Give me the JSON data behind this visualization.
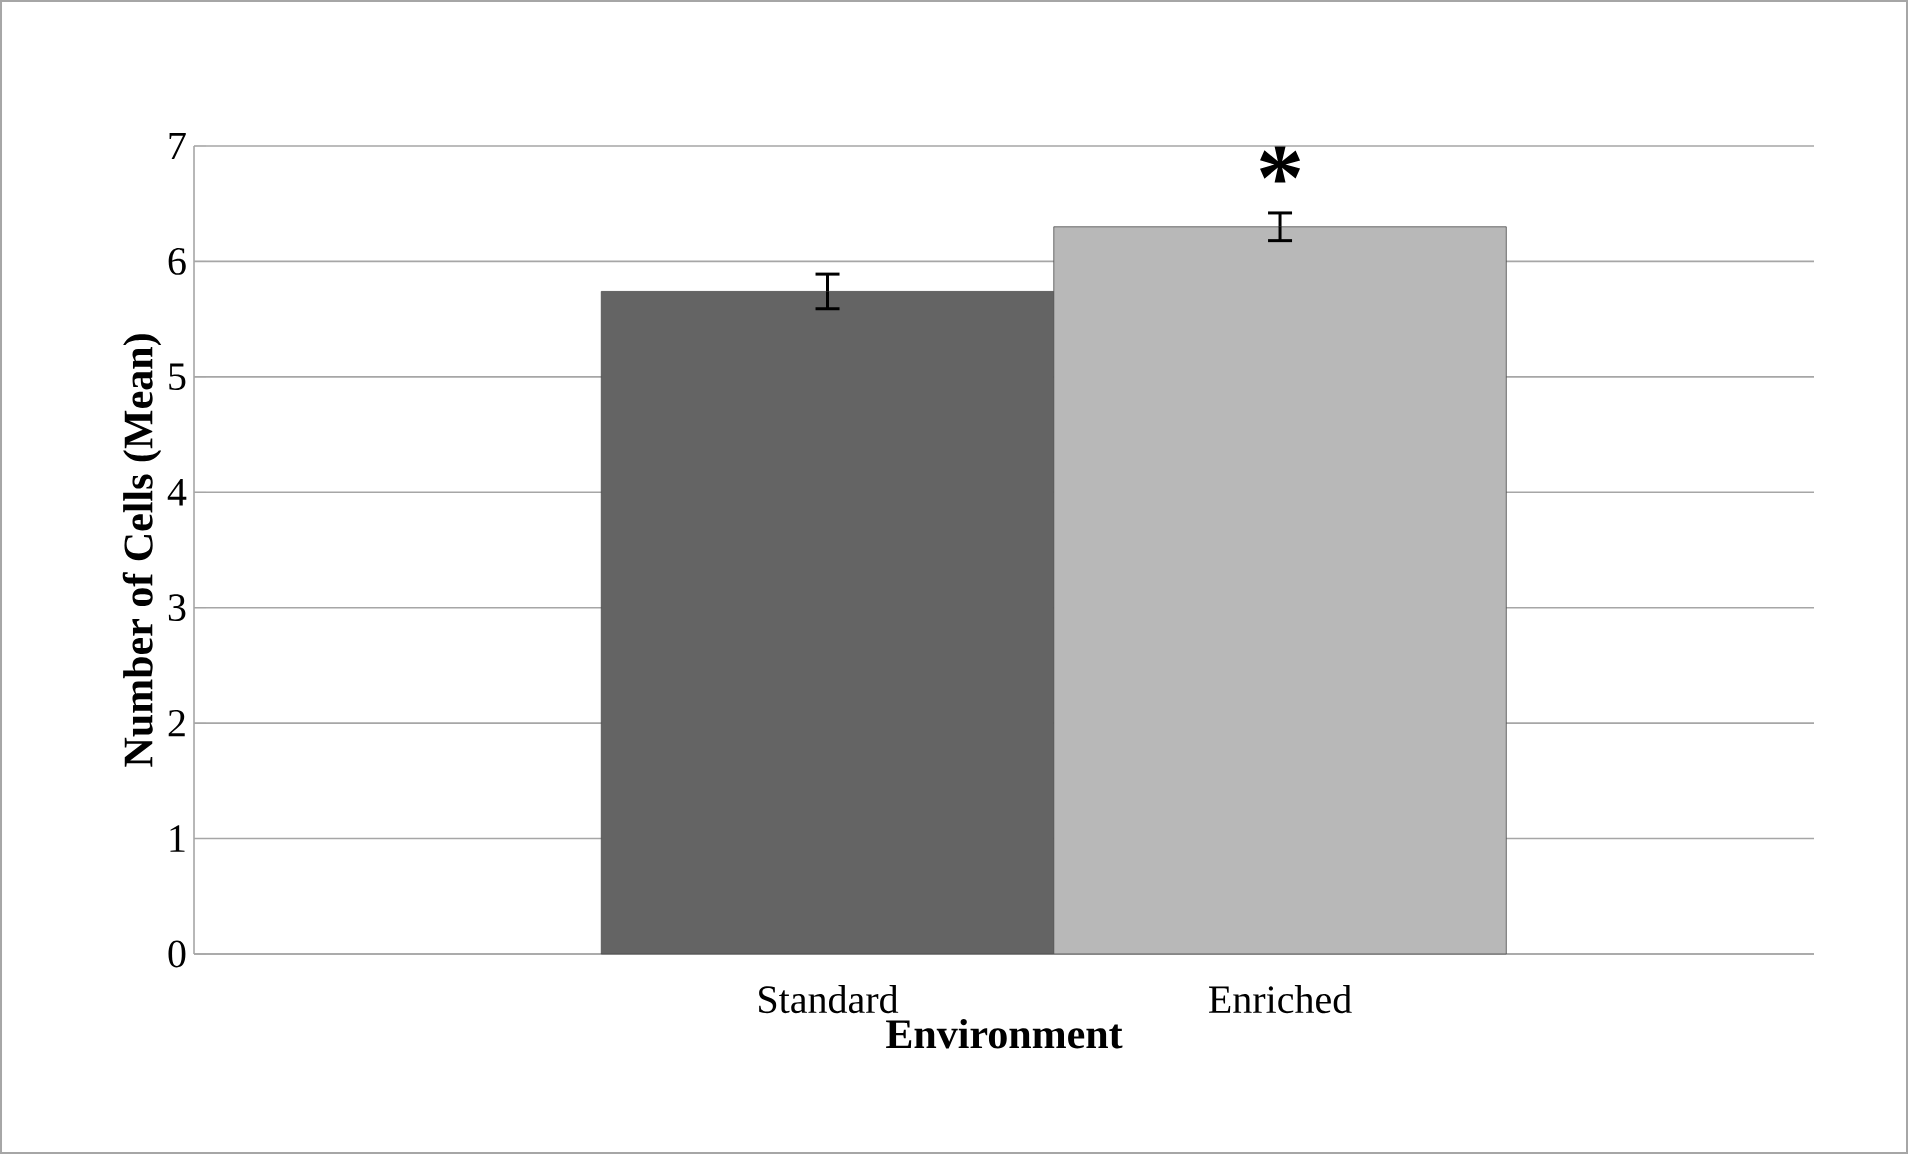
{
  "chart_data": {
    "type": "bar",
    "xlabel": "Environment",
    "ylabel": "Number of Cells (Mean)",
    "categories": [
      "Standard",
      "Enriched"
    ],
    "values": [
      5.74,
      6.3
    ],
    "errors": [
      0.15,
      0.12
    ],
    "colors": [
      "#646464",
      "#b8b8b8"
    ],
    "ylim": [
      0,
      7
    ],
    "yticks": [
      0,
      1,
      2,
      3,
      4,
      5,
      6,
      7
    ],
    "grid": "y",
    "annotations": [
      "*"
    ]
  }
}
